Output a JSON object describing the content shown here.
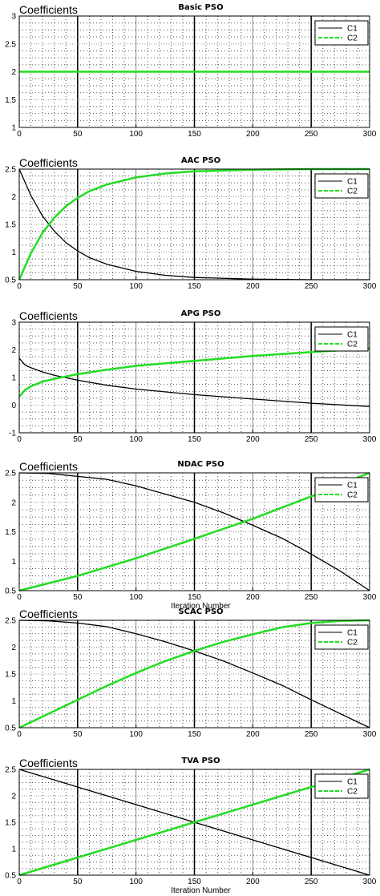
{
  "colors": {
    "c1": "#000000",
    "c2": "#22dd22",
    "grid": "#555555"
  },
  "chart_data": [
    {
      "type": "line",
      "title": "Basic PSO",
      "ylabel": "Coefficients",
      "xlabel": "",
      "xlim": [
        0,
        300
      ],
      "ylim": [
        1,
        3
      ],
      "xticks": [
        "0",
        "50",
        "100",
        "150",
        "200",
        "250",
        "300"
      ],
      "yticks": [
        "1",
        "1.5",
        "2",
        "2.5",
        "3"
      ],
      "grid": true,
      "legend": "top-right",
      "series": [
        {
          "name": "C1",
          "x": [
            0,
            300
          ],
          "y": [
            2,
            2
          ]
        },
        {
          "name": "C2",
          "x": [
            0,
            300
          ],
          "y": [
            2,
            2
          ]
        }
      ]
    },
    {
      "type": "line",
      "title": "AAC PSO",
      "ylabel": "Coefficients",
      "xlabel": "",
      "xlim": [
        0,
        300
      ],
      "ylim": [
        0.5,
        2.5
      ],
      "xticks": [
        "0",
        "50",
        "100",
        "150",
        "200",
        "250",
        "300"
      ],
      "yticks": [
        "0.5",
        "1",
        "1.5",
        "2",
        "2.5"
      ],
      "grid": true,
      "legend": "top-right",
      "series": [
        {
          "name": "C1",
          "x": [
            0,
            10,
            20,
            30,
            40,
            50,
            60,
            75,
            100,
            125,
            150,
            200,
            250,
            300
          ],
          "y": [
            2.5,
            2.02,
            1.65,
            1.38,
            1.17,
            1.02,
            0.9,
            0.78,
            0.65,
            0.58,
            0.54,
            0.51,
            0.5,
            0.5
          ]
        },
        {
          "name": "C2",
          "x": [
            0,
            10,
            20,
            30,
            40,
            50,
            60,
            75,
            100,
            125,
            150,
            200,
            250,
            300
          ],
          "y": [
            0.5,
            0.98,
            1.35,
            1.62,
            1.83,
            1.98,
            2.1,
            2.22,
            2.35,
            2.42,
            2.46,
            2.49,
            2.5,
            2.5
          ]
        }
      ]
    },
    {
      "type": "line",
      "title": "APG PSO",
      "ylabel": "Coefficients",
      "xlabel": "",
      "xlim": [
        0,
        300
      ],
      "ylim": [
        -1,
        3
      ],
      "xticks": [
        "0",
        "50",
        "100",
        "150",
        "200",
        "250",
        "300"
      ],
      "yticks": [
        "-1",
        "0",
        "1",
        "2",
        "3"
      ],
      "grid": true,
      "legend": "top-right",
      "series": [
        {
          "name": "C1",
          "x": [
            0,
            5,
            10,
            20,
            30,
            50,
            75,
            100,
            150,
            200,
            250,
            300
          ],
          "y": [
            1.7,
            1.45,
            1.35,
            1.2,
            1.08,
            0.9,
            0.72,
            0.58,
            0.38,
            0.22,
            0.07,
            -0.05
          ]
        },
        {
          "name": "C2",
          "x": [
            0,
            5,
            10,
            20,
            30,
            50,
            75,
            100,
            150,
            200,
            250,
            300
          ],
          "y": [
            0.3,
            0.55,
            0.68,
            0.85,
            0.95,
            1.12,
            1.28,
            1.42,
            1.6,
            1.78,
            1.92,
            2.05
          ]
        }
      ]
    },
    {
      "type": "line",
      "title": "NDAC PSO",
      "ylabel": "Coefficients",
      "xlabel": "Iteration Number",
      "xlim": [
        0,
        300
      ],
      "ylim": [
        0.5,
        2.5
      ],
      "xticks": [
        "0",
        "50",
        "100",
        "150",
        "200",
        "250",
        "300"
      ],
      "yticks": [
        "0.5",
        "1",
        "1.5",
        "2",
        "2.5"
      ],
      "grid": true,
      "legend": "top-right",
      "series": [
        {
          "name": "C1",
          "x": [
            0,
            25,
            50,
            75,
            100,
            125,
            150,
            175,
            200,
            225,
            250,
            275,
            300
          ],
          "y": [
            2.5,
            2.49,
            2.44,
            2.39,
            2.28,
            2.14,
            2.0,
            1.82,
            1.61,
            1.39,
            1.12,
            0.83,
            0.5
          ]
        },
        {
          "name": "C2",
          "x": [
            0,
            50,
            100,
            150,
            200,
            250,
            300
          ],
          "y": [
            0.5,
            0.75,
            1.05,
            1.38,
            1.72,
            2.1,
            2.5
          ]
        }
      ]
    },
    {
      "type": "line",
      "title": "SCAC PSO",
      "ylabel": "Coefficients",
      "xlabel": "",
      "xlim": [
        0,
        300
      ],
      "ylim": [
        0.5,
        2.5
      ],
      "xticks": [
        "0",
        "50",
        "100",
        "150",
        "200",
        "250",
        "300"
      ],
      "yticks": [
        "0.5",
        "1",
        "1.5",
        "2",
        "2.5"
      ],
      "grid": true,
      "legend": "top-right",
      "series": [
        {
          "name": "C1",
          "x": [
            0,
            25,
            50,
            75,
            100,
            125,
            150,
            175,
            200,
            225,
            250,
            275,
            300
          ],
          "y": [
            2.5,
            2.49,
            2.45,
            2.38,
            2.25,
            2.1,
            1.93,
            1.74,
            1.52,
            1.29,
            1.02,
            0.76,
            0.5
          ]
        },
        {
          "name": "C2",
          "x": [
            0,
            25,
            50,
            75,
            100,
            125,
            150,
            175,
            200,
            225,
            250,
            275,
            300
          ],
          "y": [
            0.5,
            0.76,
            1.02,
            1.28,
            1.52,
            1.74,
            1.93,
            2.1,
            2.24,
            2.37,
            2.45,
            2.49,
            2.5
          ]
        }
      ]
    },
    {
      "type": "line",
      "title": "TVA PSO",
      "ylabel": "Coefficients",
      "xlabel": "Iteration Number",
      "xlim": [
        0,
        300
      ],
      "ylim": [
        0.5,
        2.5
      ],
      "xticks": [
        "0",
        "50",
        "100",
        "150",
        "200",
        "250",
        "300"
      ],
      "yticks": [
        "0.5",
        "1",
        "1.5",
        "2",
        "2.5"
      ],
      "grid": true,
      "legend": "top-right",
      "series": [
        {
          "name": "C1",
          "x": [
            0,
            300
          ],
          "y": [
            2.5,
            0.5
          ]
        },
        {
          "name": "C2",
          "x": [
            0,
            300
          ],
          "y": [
            0.5,
            2.5
          ]
        }
      ]
    }
  ]
}
